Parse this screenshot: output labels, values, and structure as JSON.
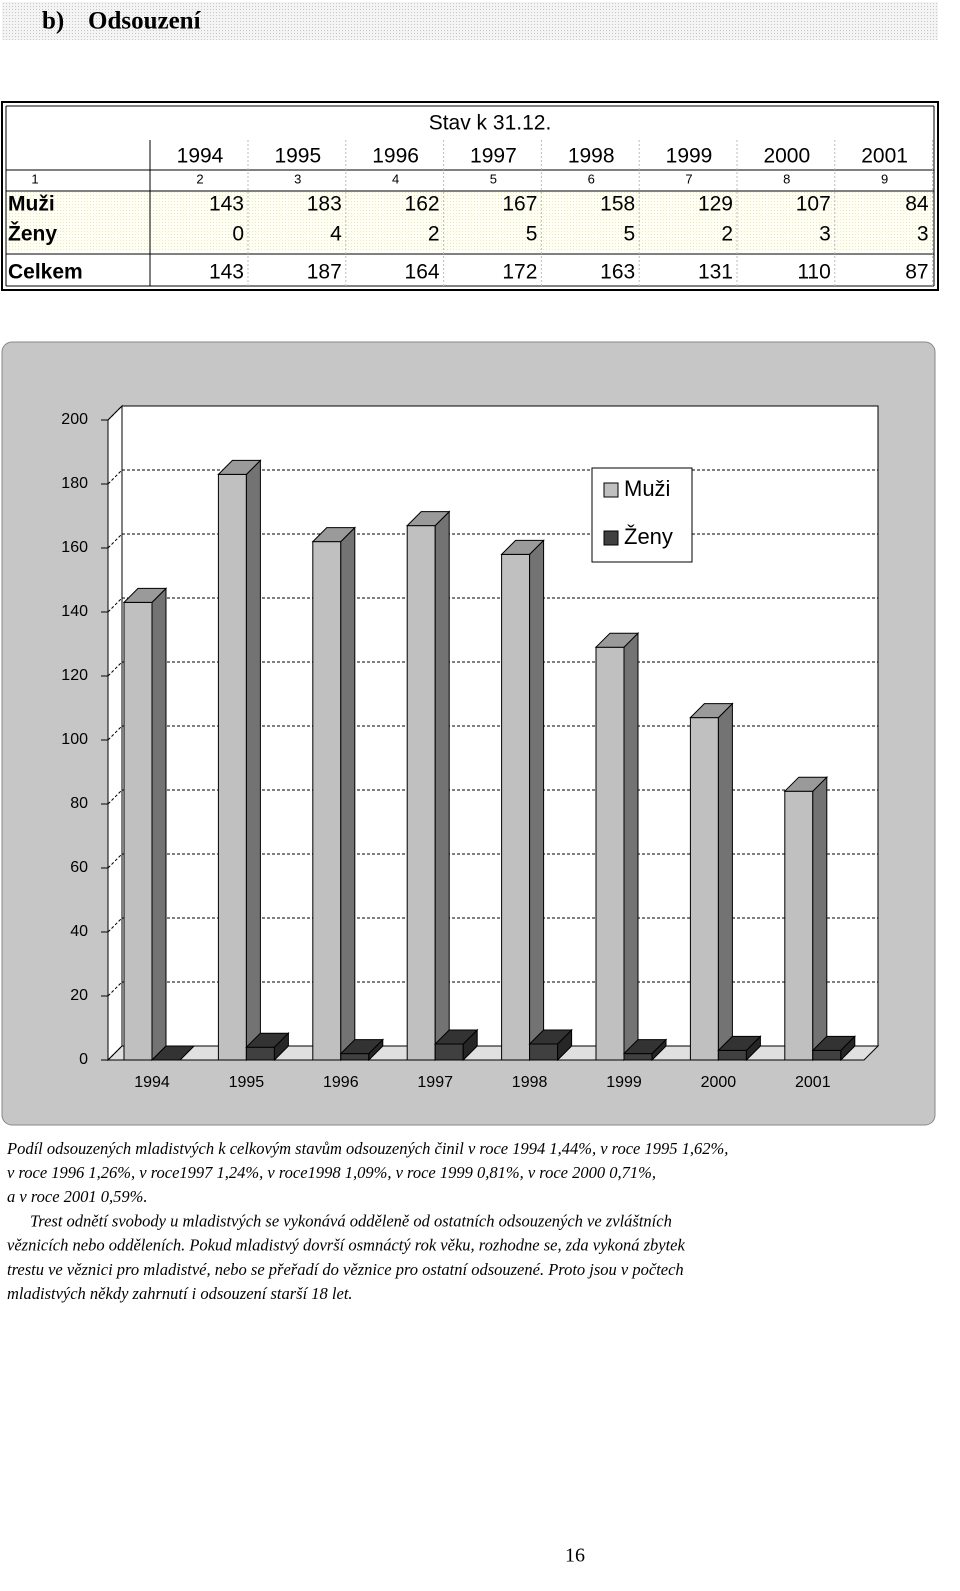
{
  "heading": {
    "number": "b)",
    "title": "Odsouzení"
  },
  "table": {
    "caption": "Stav k 31.12.",
    "years": [
      "1994",
      "1995",
      "1996",
      "1997",
      "1998",
      "1999",
      "2000",
      "2001"
    ],
    "column_numbers": [
      "1",
      "2",
      "3",
      "4",
      "5",
      "6",
      "7",
      "8",
      "9"
    ],
    "rows": [
      {
        "label": "Muži",
        "values": [
          143,
          183,
          162,
          167,
          158,
          129,
          107,
          84
        ]
      },
      {
        "label": "Ženy",
        "values": [
          0,
          4,
          2,
          5,
          5,
          2,
          3,
          3
        ]
      },
      {
        "label": "Celkem",
        "values": [
          143,
          187,
          164,
          172,
          163,
          131,
          110,
          87
        ]
      }
    ]
  },
  "chart_data": {
    "type": "bar3d",
    "categories": [
      "1994",
      "1995",
      "1996",
      "1997",
      "1998",
      "1999",
      "2000",
      "2001"
    ],
    "series": [
      {
        "name": "Muži",
        "color": "#c0c0c0",
        "values": [
          143,
          183,
          162,
          167,
          158,
          129,
          107,
          84
        ]
      },
      {
        "name": "Ženy",
        "color": "#404040",
        "values": [
          0,
          4,
          2,
          5,
          5,
          2,
          3,
          3
        ]
      }
    ],
    "ylim": [
      0,
      200
    ],
    "yticks": [
      0,
      20,
      40,
      60,
      80,
      100,
      120,
      140,
      160,
      180,
      200
    ],
    "grid": true,
    "legend": "upper-right"
  },
  "text": {
    "paragraphs": [
      [
        "Podíl odsouzených mladistvých k celkovým stavům odsouzených činil v roce 1994 1,44%, v roce 1995 1,62%,",
        "v roce 1996 1,26%, v roce1997 1,24%, v roce1998 1,09%, v roce 1999 0,81%, v roce 2000 0,71%,",
        "a v roce 2001 0,59%."
      ],
      [
        "Trest odnětí svobody u mladistvých se vykonává odděleně od ostatních odsouzených ve zvláštních",
        "věznicích nebo odděleních. Pokud mladistvý dovrší osmnáctý rok věku, rozhodne se,  zda vykoná zbytek",
        "trestu ve věznici pro mladistvé, nebo se přeřadí do věznice pro ostatní odsouzené. Proto jsou v počtech",
        "mladistvých někdy zahrnutí i odsouzení starší 18 let."
      ]
    ]
  },
  "page_number": "16"
}
